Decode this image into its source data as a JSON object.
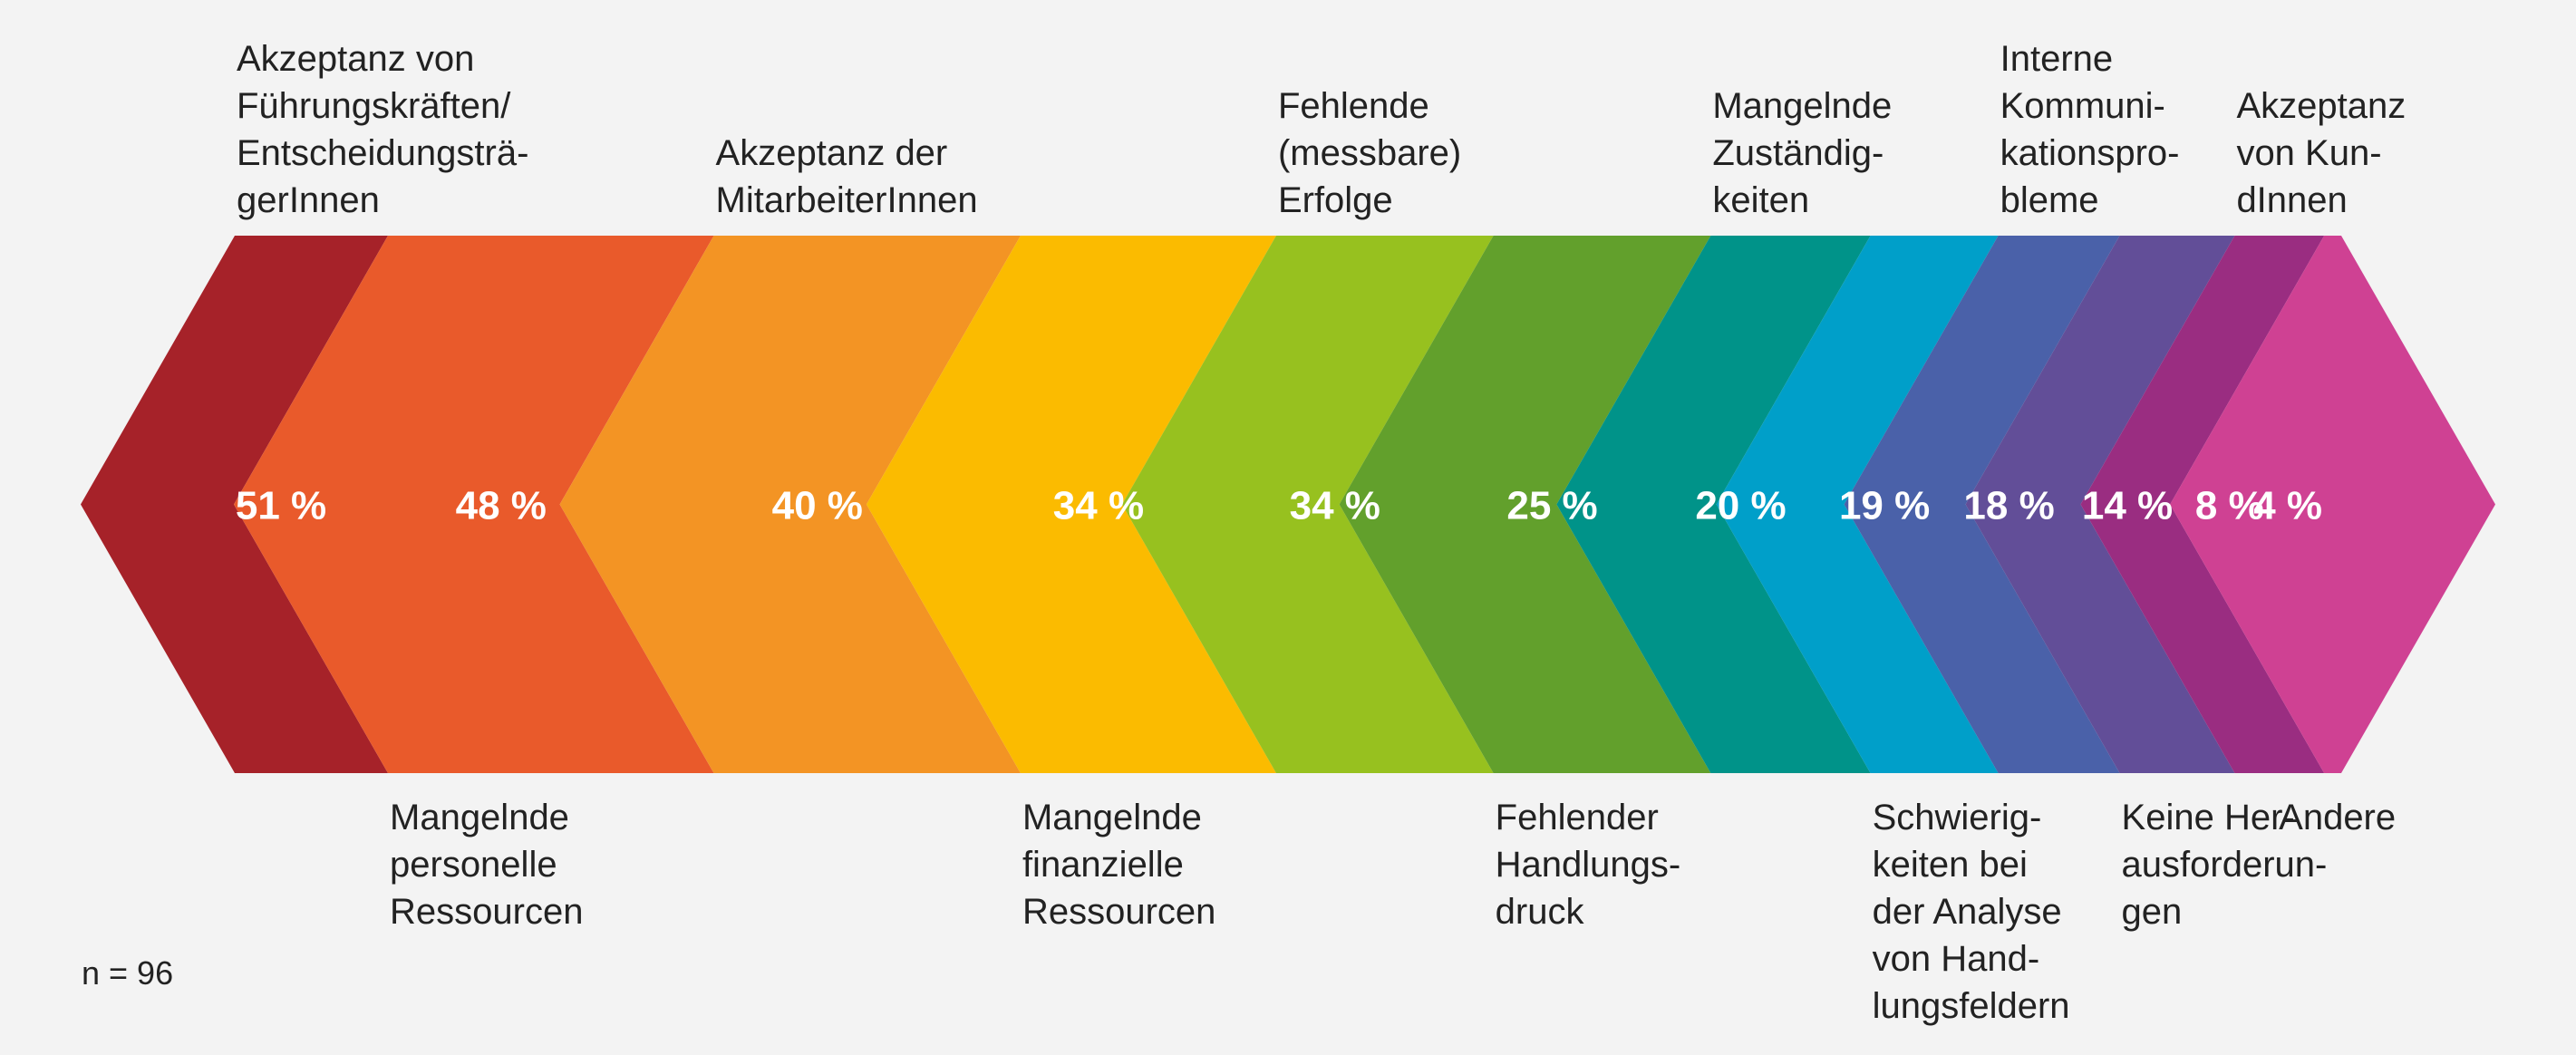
{
  "chart_data": {
    "type": "bar",
    "categories": [
      "Akzeptanz von Führungskräften/Entscheidungsträger­Innen",
      "Mangelnde personelle Ressourcen",
      "Akzeptanz der MitarbeiterInnen",
      "Mangelnde finanzielle Ressourcen",
      "Fehlende (messbare) Erfolge",
      "Fehlender Handlungsdruck",
      "Mangelnde Zuständigkeiten",
      "Schwierigkeiten bei der Analyse von Handlungsfeldern",
      "Interne Kommunikationsprobleme",
      "Keine Herausforderungen",
      "Akzeptanz von KundInnen",
      "Andere"
    ],
    "category_label_lines": [
      [
        "Akzeptanz von",
        "Führungskräften/",
        "Entscheidungsträ-",
        "gerInnen"
      ],
      [
        "Mangelnde",
        "personelle",
        "Ressourcen"
      ],
      [
        "Akzeptanz der",
        "MitarbeiterInnen"
      ],
      [
        "Mangelnde",
        "finanzielle",
        "Ressourcen"
      ],
      [
        "Fehlende",
        "(messbare)",
        "Erfolge"
      ],
      [
        "Fehlender",
        "Handlungs-",
        "druck"
      ],
      [
        "Mangelnde",
        "Zuständig-",
        "keiten"
      ],
      [
        "Schwierig-",
        "keiten bei",
        "der Analyse",
        "von Hand-",
        "lungsfeldern"
      ],
      [
        "Interne",
        "Kommuni-",
        "kationspro-",
        "bleme"
      ],
      [
        "Keine Her-",
        "ausforderun-",
        "gen"
      ],
      [
        "Akzeptanz",
        "von Kun-",
        "dInnen"
      ],
      [
        "Andere"
      ]
    ],
    "label_side": [
      "top",
      "bottom",
      "top",
      "bottom",
      "top",
      "bottom",
      "top",
      "bottom",
      "top",
      "bottom",
      "top",
      "bottom"
    ],
    "values": [
      51,
      48,
      40,
      34,
      34,
      25,
      20,
      19,
      18,
      14,
      8,
      4
    ],
    "value_labels": [
      "51 %",
      "48 %",
      "40 %",
      "34 %",
      "34 %",
      "25 %",
      "20 %",
      "19 %",
      "18 %",
      "14 %",
      "8 %",
      "4 %"
    ],
    "colors": [
      "#a62229",
      "#e95a2b",
      "#f39424",
      "#fbbb00",
      "#97c11f",
      "#62a02c",
      "#009389",
      "#009fc9",
      "#4a61a9",
      "#624e98",
      "#9a2d81",
      "#cf4193"
    ],
    "title": "",
    "xlabel": "",
    "ylabel": ""
  },
  "note": "n = 96"
}
